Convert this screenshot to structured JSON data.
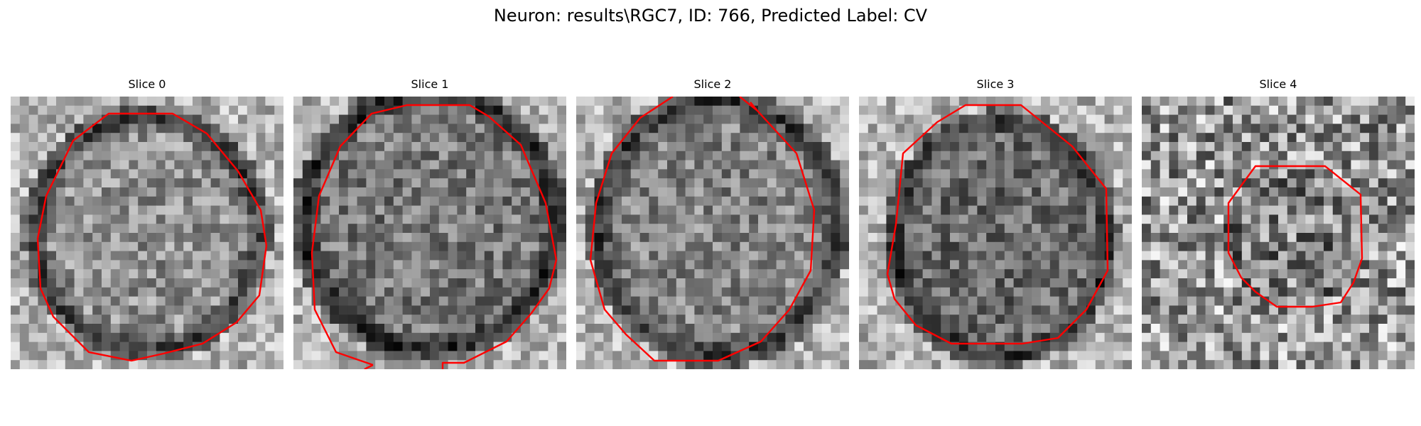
{
  "figure": {
    "title": "Neuron: results\\RGC7, ID: 766, Predicted Label: CV"
  },
  "panels": [
    {
      "label": "Slice 0",
      "contour_color": "#ff0000"
    },
    {
      "label": "Slice 1",
      "contour_color": "#ff0000"
    },
    {
      "label": "Slice 2",
      "contour_color": "#ff0000"
    },
    {
      "label": "Slice 3",
      "contour_color": "#ff0000"
    },
    {
      "label": "Slice 4",
      "contour_color": "#ff0000"
    }
  ],
  "colors": {
    "contour": "#ff0000",
    "colormap": "grayscale"
  }
}
